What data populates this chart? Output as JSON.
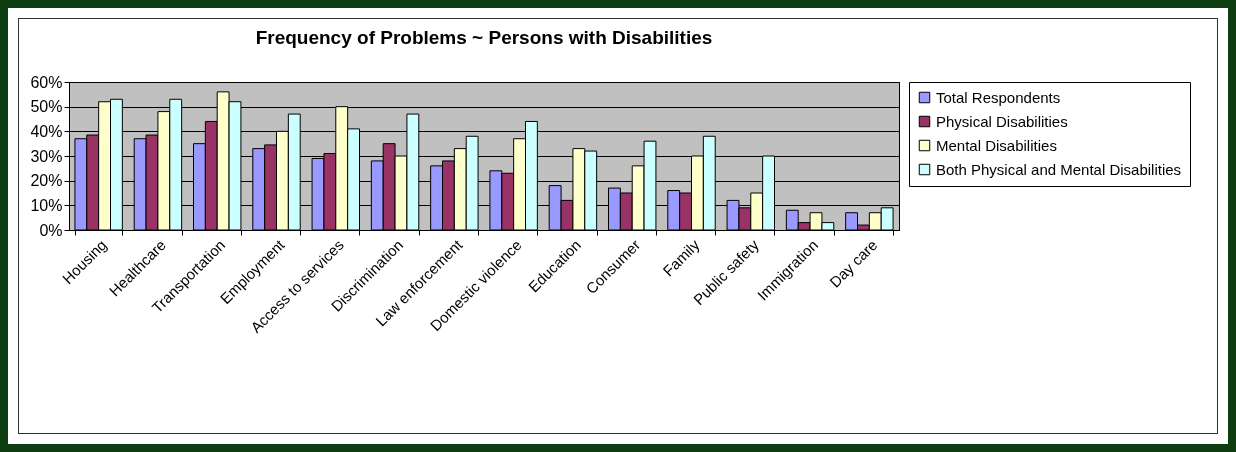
{
  "chart_data": {
    "type": "bar",
    "title": "Frequency of Problems ~ Persons with Disabilities",
    "categories": [
      "Housing",
      "Healthcare",
      "Transportation",
      "Employment",
      "Access to services",
      "Discrimination",
      "Law enforcement",
      "Domestic violence",
      "Education",
      "Consumer",
      "Family",
      "Public safety",
      "Immigration",
      "Day care"
    ],
    "series": [
      {
        "name": "Total Respondents",
        "color": "#9999ff",
        "values": [
          37,
          37,
          35,
          33,
          29,
          28,
          26,
          24,
          18,
          17,
          16,
          12,
          8,
          7
        ]
      },
      {
        "name": "Physical Disabilities",
        "color": "#993366",
        "values": [
          38.5,
          38.5,
          44,
          34.5,
          31,
          35,
          28,
          23,
          12,
          15,
          15,
          9,
          3,
          2
        ]
      },
      {
        "name": "Mental Disabilities",
        "color": "#ffffcc",
        "values": [
          52,
          48,
          56,
          40,
          50,
          30,
          33,
          37,
          33,
          26,
          30,
          15,
          7,
          7
        ]
      },
      {
        "name": "Both Physical and Mental Disabilities",
        "color": "#ccffff",
        "values": [
          53,
          53,
          52,
          47,
          41,
          47,
          38,
          44,
          32,
          36,
          38,
          30,
          3,
          9
        ]
      }
    ],
    "ylim": [
      0,
      60
    ],
    "yticks": [
      {
        "value": 0,
        "label": "0%"
      },
      {
        "value": 10,
        "label": "10%"
      },
      {
        "value": 20,
        "label": "20%"
      },
      {
        "value": 30,
        "label": "30%"
      },
      {
        "value": 40,
        "label": "40%"
      },
      {
        "value": 50,
        "label": "50%"
      },
      {
        "value": 60,
        "label": "60%"
      }
    ],
    "grid": "y",
    "legend": "right"
  }
}
